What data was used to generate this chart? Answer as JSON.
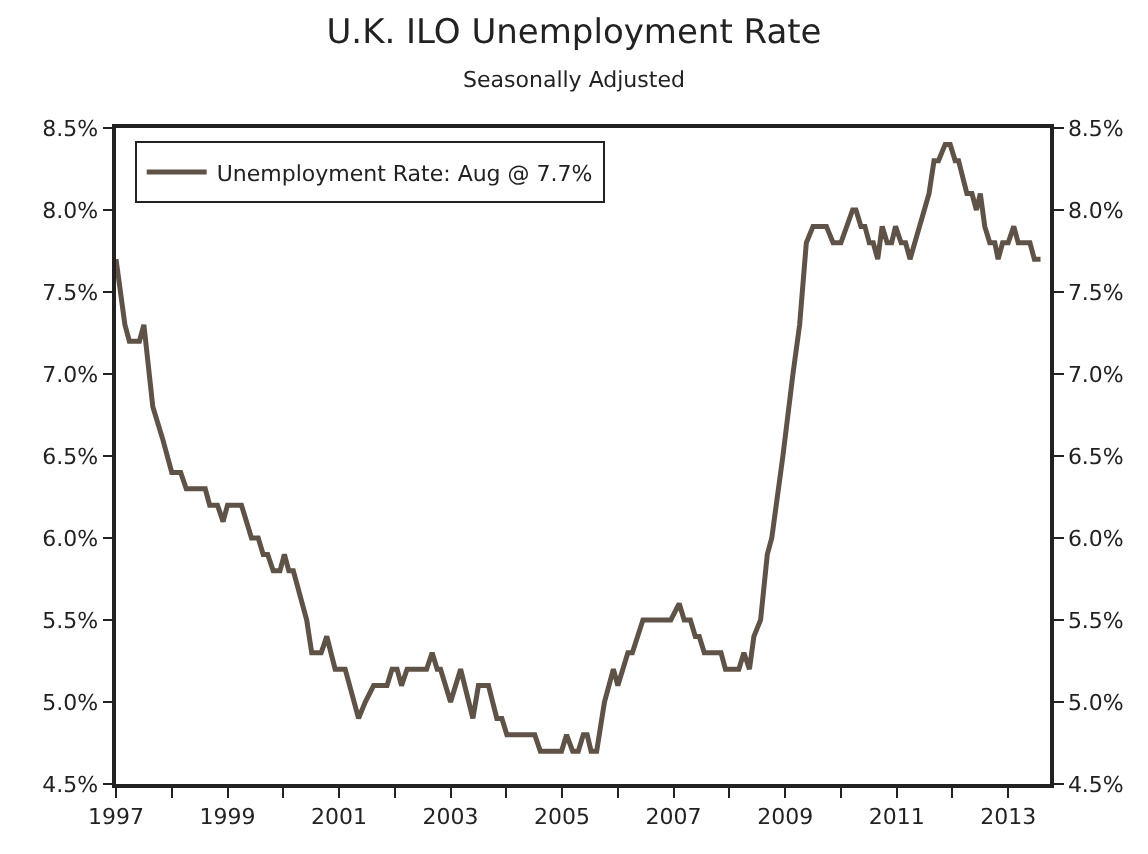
{
  "chart_data": {
    "type": "line",
    "title": "U.K. ILO Unemployment Rate",
    "subtitle": "Seasonally Adjusted",
    "x": [
      1997.0,
      1997.16,
      1997.24,
      1997.42,
      1997.5,
      1997.66,
      1997.84,
      1998.0,
      1998.16,
      1998.26,
      1998.6,
      1998.68,
      1998.82,
      1998.92,
      1999.0,
      1999.25,
      1999.43,
      1999.55,
      1999.64,
      1999.72,
      1999.82,
      1999.94,
      2000.02,
      2000.1,
      2000.18,
      2000.42,
      2000.51,
      2000.68,
      2000.78,
      2000.93,
      2001.11,
      2001.35,
      2001.47,
      2001.62,
      2001.86,
      2001.95,
      2002.04,
      2002.12,
      2002.22,
      2002.57,
      2002.67,
      2002.76,
      2002.82,
      2003.0,
      2003.18,
      2003.4,
      2003.5,
      2003.68,
      2003.83,
      2003.92,
      2004.01,
      2004.51,
      2004.61,
      2004.99,
      2005.08,
      2005.19,
      2005.29,
      2005.38,
      2005.45,
      2005.52,
      2005.62,
      2005.76,
      2005.92,
      2006.0,
      2006.18,
      2006.26,
      2006.45,
      2006.95,
      2007.1,
      2007.19,
      2007.3,
      2007.39,
      2007.46,
      2007.55,
      2007.85,
      2007.93,
      2008.17,
      2008.26,
      2008.36,
      2008.44,
      2008.56,
      2008.68,
      2008.76,
      2008.96,
      2009.14,
      2009.26,
      2009.38,
      2009.5,
      2009.74,
      2009.86,
      2010.0,
      2010.21,
      2010.27,
      2010.36,
      2010.43,
      2010.51,
      2010.58,
      2010.66,
      2010.74,
      2010.83,
      2010.91,
      2010.98,
      2011.08,
      2011.16,
      2011.24,
      2011.58,
      2011.67,
      2011.75,
      2011.87,
      2011.96,
      2012.05,
      2012.11,
      2012.26,
      2012.35,
      2012.43,
      2012.5,
      2012.58,
      2012.67,
      2012.76,
      2012.82,
      2012.9,
      2013.0,
      2013.1,
      2013.18,
      2013.39,
      2013.47,
      2013.58
    ],
    "series": [
      {
        "name": "Unemployment Rate: Aug @ 7.7%",
        "color": "#5f5246",
        "values": [
          7.7,
          7.3,
          7.2,
          7.2,
          7.3,
          6.8,
          6.6,
          6.4,
          6.4,
          6.3,
          6.3,
          6.2,
          6.2,
          6.1,
          6.2,
          6.2,
          6.0,
          6.0,
          5.9,
          5.9,
          5.8,
          5.8,
          5.9,
          5.8,
          5.8,
          5.5,
          5.3,
          5.3,
          5.4,
          5.2,
          5.2,
          4.9,
          5.0,
          5.1,
          5.1,
          5.2,
          5.2,
          5.1,
          5.2,
          5.2,
          5.3,
          5.2,
          5.2,
          5.0,
          5.2,
          4.9,
          5.1,
          5.1,
          4.9,
          4.9,
          4.8,
          4.8,
          4.7,
          4.7,
          4.8,
          4.7,
          4.7,
          4.8,
          4.8,
          4.7,
          4.7,
          5.0,
          5.2,
          5.1,
          5.3,
          5.3,
          5.5,
          5.5,
          5.6,
          5.5,
          5.5,
          5.4,
          5.4,
          5.3,
          5.3,
          5.2,
          5.2,
          5.3,
          5.2,
          5.4,
          5.5,
          5.9,
          6.0,
          6.5,
          7.0,
          7.3,
          7.8,
          7.9,
          7.9,
          7.8,
          7.8,
          8.0,
          8.0,
          7.9,
          7.9,
          7.8,
          7.8,
          7.7,
          7.9,
          7.8,
          7.8,
          7.9,
          7.8,
          7.8,
          7.7,
          8.1,
          8.3,
          8.3,
          8.4,
          8.4,
          8.3,
          8.3,
          8.1,
          8.1,
          8.0,
          8.1,
          7.9,
          7.8,
          7.8,
          7.7,
          7.8,
          7.8,
          7.9,
          7.8,
          7.8,
          7.7,
          7.7
        ]
      }
    ],
    "xlim": [
      1997,
      2013.75
    ],
    "xticks": [
      1997,
      {
        "value": 1998,
        "label": null
      },
      1999,
      {
        "value": 2000,
        "label": null
      },
      2001,
      {
        "value": 2002,
        "label": null
      },
      2003,
      {
        "value": 2004,
        "label": null
      },
      2005,
      {
        "value": 2006,
        "label": null
      },
      2007,
      {
        "value": 2008,
        "label": null
      },
      2009,
      {
        "value": 2010,
        "label": null
      },
      2011,
      {
        "value": 2012,
        "label": null
      },
      2013
    ],
    "ylim": [
      4.5,
      8.5
    ],
    "yticks": [
      {
        "value": 4.5,
        "label": "4.5%"
      },
      {
        "value": 5.0,
        "label": "5.0%"
      },
      {
        "value": 5.5,
        "label": "5.5%"
      },
      {
        "value": 6.0,
        "label": "6.0%"
      },
      {
        "value": 6.5,
        "label": "6.5%"
      },
      {
        "value": 7.0,
        "label": "7.0%"
      },
      {
        "value": 7.5,
        "label": "7.5%"
      },
      {
        "value": 8.0,
        "label": "8.0%"
      },
      {
        "value": 8.5,
        "label": "8.5%"
      }
    ],
    "y2lim": [
      4.5,
      8.5
    ],
    "y2ticks": [
      {
        "value": 4.5,
        "label": "4.5%"
      },
      {
        "value": 5.0,
        "label": "5.0%"
      },
      {
        "value": 5.5,
        "label": "5.5%"
      },
      {
        "value": 6.0,
        "label": "6.0%"
      },
      {
        "value": 6.5,
        "label": "6.5%"
      },
      {
        "value": 7.0,
        "label": "7.0%"
      },
      {
        "value": 7.5,
        "label": "7.5%"
      },
      {
        "value": 8.0,
        "label": "8.0%"
      },
      {
        "value": 8.5,
        "label": "8.5%"
      }
    ],
    "legend": "top left",
    "marker": "none",
    "line_style": "solid"
  }
}
